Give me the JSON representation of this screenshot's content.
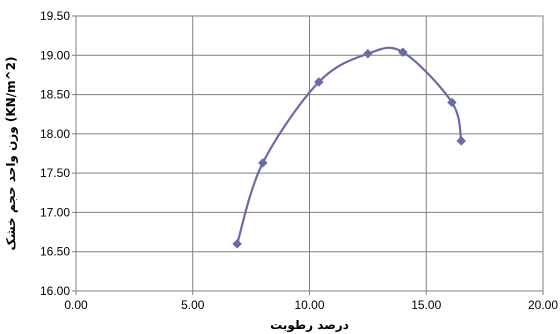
{
  "chart_data": {
    "type": "line",
    "title": "",
    "xlabel": "درصد رطوبت",
    "ylabel": "(KN/m^2) وزن واحد حجم خشک",
    "xlim": [
      0,
      20
    ],
    "ylim": [
      16,
      19.5
    ],
    "x_ticks": [
      "0.00",
      "5.00",
      "10.00",
      "15.00",
      "20.00"
    ],
    "y_ticks": [
      "16.00",
      "16.50",
      "17.00",
      "17.50",
      "18.00",
      "18.50",
      "19.00",
      "19.50"
    ],
    "grid": true,
    "smooth": true,
    "series_color": "#6B6BA6",
    "marker": "diamond",
    "series": [
      {
        "x": [
          6.9,
          8.0,
          10.4,
          12.5,
          14.0,
          16.1,
          16.5
        ],
        "y": [
          16.6,
          17.63,
          18.66,
          19.02,
          19.04,
          18.4,
          17.91
        ]
      }
    ]
  }
}
